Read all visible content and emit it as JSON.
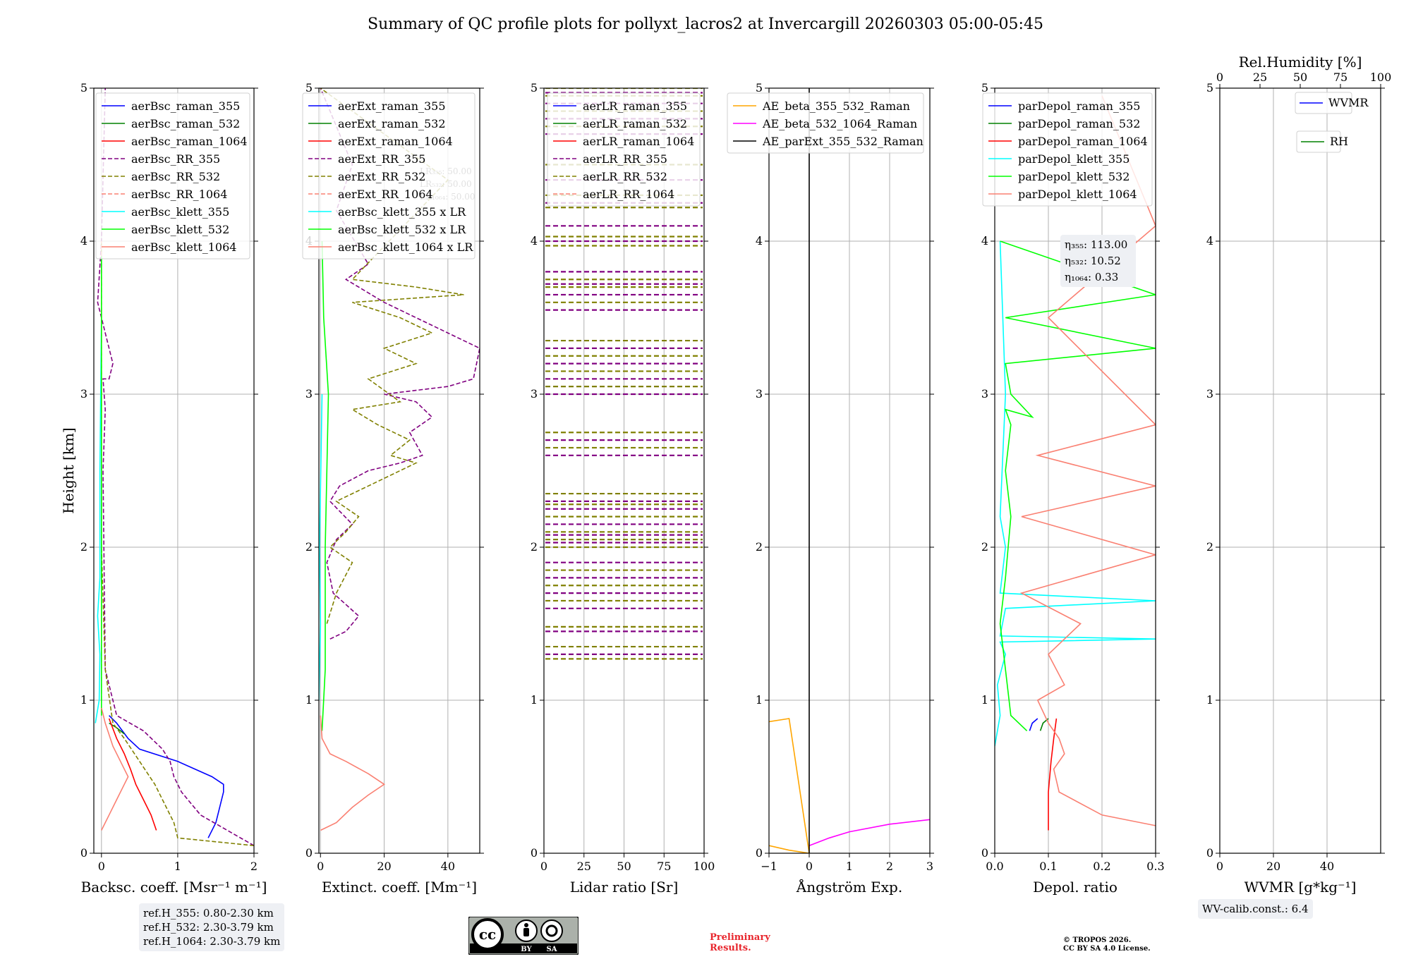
{
  "title": "Summary of QC profile plots for pollyxt_lacros2 at Invercargill 20260303 05:00-05:45",
  "reference_heights": [
    "ref.H_355: 0.80-2.30 km",
    "ref.H_532: 2.30-3.79 km",
    "ref.H_1064: 2.30-3.79 km"
  ],
  "wv_calibration": "WV-calib.const.: 6.4",
  "preliminary": [
    "Preliminary",
    "Results."
  ],
  "copyright": [
    "© TROPOS 2026.",
    "CC BY SA 4.0 License."
  ],
  "license_badge": {
    "left": "BY",
    "right": "SA"
  },
  "colors": {
    "blue": "#0000ff",
    "green": "#008000",
    "red": "#ff0000",
    "purple": "#800080",
    "olive": "#808000",
    "salmon": "#fa8072",
    "cyan": "#00ffff",
    "lime": "#00ff00",
    "orange": "#ffa500",
    "magenta": "#ff00ff",
    "black": "#000000"
  },
  "chart_data": [
    {
      "id": "backscatter",
      "type": "line",
      "xlabel": "Backsc. coeff. [Msr⁻¹ m⁻¹]",
      "ylabel": "Height [km]",
      "xlim": [
        -0.1,
        2
      ],
      "ylim": [
        0,
        5
      ],
      "xticks": [
        0,
        1,
        2
      ],
      "yticks": [
        0,
        1,
        2,
        3,
        4,
        5
      ],
      "series": [
        {
          "name": "aerBsc_raman_355",
          "color": "#0000ff",
          "dash": false,
          "x": [
            1.4,
            1.5,
            1.6,
            1.6,
            1.45,
            1.0,
            0.5,
            0.35,
            0.2,
            0.1
          ],
          "y": [
            0.1,
            0.2,
            0.4,
            0.45,
            0.5,
            0.6,
            0.68,
            0.75,
            0.85,
            0.9
          ]
        },
        {
          "name": "aerBsc_raman_532",
          "color": "#008000",
          "dash": false,
          "x": [
            0.1,
            0.2,
            0.3
          ],
          "y": [
            0.85,
            0.82,
            0.78
          ]
        },
        {
          "name": "aerBsc_raman_1064",
          "color": "#ff0000",
          "dash": false,
          "x": [
            0.72,
            0.65,
            0.55,
            0.45,
            0.38,
            0.3,
            0.2,
            0.1
          ],
          "y": [
            0.15,
            0.25,
            0.35,
            0.45,
            0.55,
            0.65,
            0.75,
            0.88
          ]
        },
        {
          "name": "aerBsc_RR_355",
          "color": "#800080",
          "dash": true,
          "x": [
            2.0,
            1.3,
            1.05,
            0.95,
            0.9,
            0.8,
            0.55,
            0.2,
            0.05,
            0.02,
            0.05,
            0.02,
            0.1,
            0.15,
            0.05,
            -0.05,
            0.0,
            0.05
          ],
          "y": [
            0.05,
            0.25,
            0.4,
            0.5,
            0.6,
            0.68,
            0.8,
            0.9,
            1.2,
            2.5,
            2.9,
            3.1,
            3.1,
            3.2,
            3.4,
            3.6,
            4.0,
            5.0
          ]
        },
        {
          "name": "aerBsc_RR_532",
          "color": "#808000",
          "dash": true,
          "x": [
            2.0,
            1.0,
            0.95,
            0.85,
            0.7,
            0.5,
            0.3,
            0.15,
            0.05,
            0.0,
            0.0
          ],
          "y": [
            0.05,
            0.1,
            0.2,
            0.3,
            0.45,
            0.6,
            0.75,
            0.85,
            1.2,
            2.0,
            4.0
          ]
        },
        {
          "name": "aerBsc_RR_1064",
          "color": "#fa8072",
          "dash": true,
          "x": [
            0.0,
            0.0
          ],
          "y": [
            1.0,
            4.0
          ]
        },
        {
          "name": "aerBsc_klett_355",
          "color": "#00ffff",
          "dash": false,
          "x": [
            -0.08,
            -0.03,
            -0.02,
            -0.05,
            -0.02,
            -0.02,
            0.0
          ],
          "y": [
            0.85,
            1.0,
            1.3,
            1.55,
            1.8,
            2.5,
            3.5
          ]
        },
        {
          "name": "aerBsc_klett_532",
          "color": "#00ff00",
          "dash": false,
          "x": [
            0.0,
            0.0,
            0.0
          ],
          "y": [
            0.9,
            2.0,
            3.9
          ]
        },
        {
          "name": "aerBsc_klett_1064",
          "color": "#fa8072",
          "dash": false,
          "x": [
            0.0,
            0.1,
            0.2,
            0.3,
            0.35,
            0.3,
            0.15,
            0.05,
            0.0
          ],
          "y": [
            0.15,
            0.25,
            0.35,
            0.45,
            0.5,
            0.55,
            0.7,
            0.85,
            0.95
          ]
        }
      ]
    },
    {
      "id": "extinction",
      "type": "line",
      "xlabel": "Extinct. coeff. [Mm⁻¹]",
      "xlim": [
        -0.5,
        50
      ],
      "ylim": [
        0,
        5
      ],
      "xticks": [
        0,
        20,
        40
      ],
      "yticks": [
        0,
        1,
        2,
        3,
        4,
        5
      ],
      "overlay_text": [
        "LR₃₅₅: 50.00",
        "LR₅₃₂: 50.00",
        "LR₁₀₆₄: 50.00"
      ],
      "series": [
        {
          "name": "aerExt_raman_355",
          "color": "#0000ff",
          "dash": false,
          "x": [],
          "y": []
        },
        {
          "name": "aerExt_raman_532",
          "color": "#008000",
          "dash": false,
          "x": [],
          "y": []
        },
        {
          "name": "aerExt_raman_1064",
          "color": "#ff0000",
          "dash": false,
          "x": [],
          "y": []
        },
        {
          "name": "aerExt_RR_355",
          "color": "#800080",
          "dash": true,
          "x": [
            3,
            8,
            12,
            4,
            2,
            5,
            10,
            3,
            6,
            15,
            25,
            32,
            28,
            35,
            30,
            20,
            40,
            48,
            50,
            30,
            20,
            8,
            15,
            5,
            10,
            0
          ],
          "y": [
            1.4,
            1.45,
            1.55,
            1.7,
            1.9,
            2.05,
            2.15,
            2.3,
            2.4,
            2.5,
            2.55,
            2.6,
            2.75,
            2.85,
            2.95,
            3.0,
            3.05,
            3.1,
            3.3,
            3.5,
            3.6,
            3.75,
            3.85,
            4.2,
            4.5,
            5.0
          ]
        },
        {
          "name": "aerExt_RR_532",
          "color": "#808000",
          "dash": true,
          "x": [
            2,
            5,
            10,
            3,
            8,
            12,
            5,
            15,
            25,
            30,
            22,
            28,
            18,
            10,
            25,
            15,
            30,
            20,
            35,
            25,
            10,
            45,
            30,
            10,
            40,
            0
          ],
          "y": [
            1.5,
            1.7,
            1.9,
            2.0,
            2.1,
            2.2,
            2.3,
            2.4,
            2.5,
            2.55,
            2.6,
            2.7,
            2.8,
            2.9,
            2.95,
            3.1,
            3.2,
            3.3,
            3.4,
            3.5,
            3.6,
            3.65,
            3.7,
            3.75,
            4.4,
            5.0
          ]
        },
        {
          "name": "aerExt_RR_1064",
          "color": "#fa8072",
          "dash": true,
          "x": [],
          "y": []
        },
        {
          "name": "aerBsc_klett_355 x LR",
          "color": "#00ffff",
          "dash": false,
          "x": [
            -0.5,
            0.0,
            -0.3,
            0.5
          ],
          "y": [
            1.0,
            1.5,
            2.0,
            3.0
          ]
        },
        {
          "name": "aerBsc_klett_532 x LR",
          "color": "#00ff00",
          "dash": false,
          "x": [
            0.5,
            1.5,
            1.5,
            2.0,
            2.5,
            1.0,
            0.5
          ],
          "y": [
            0.8,
            1.2,
            2.0,
            2.5,
            3.0,
            3.5,
            4.0
          ]
        },
        {
          "name": "aerBsc_klett_1064 x LR",
          "color": "#fa8072",
          "dash": false,
          "x": [
            0,
            5,
            10,
            15,
            20,
            15,
            8,
            3,
            0.5,
            0
          ],
          "y": [
            0.15,
            0.2,
            0.3,
            0.38,
            0.45,
            0.52,
            0.6,
            0.65,
            0.75,
            0.9
          ]
        }
      ]
    },
    {
      "id": "lidar_ratio",
      "type": "line",
      "xlabel": "Lidar ratio [Sr]",
      "xlim": [
        0,
        100
      ],
      "ylim": [
        0,
        5
      ],
      "xticks": [
        0,
        25,
        50,
        75,
        100
      ],
      "yticks": [
        0,
        1,
        2,
        3,
        4,
        5
      ],
      "series": [
        {
          "name": "aerLR_raman_355",
          "color": "#0000ff",
          "dash": false,
          "x": [],
          "y": []
        },
        {
          "name": "aerLR_raman_532",
          "color": "#008000",
          "dash": false,
          "x": [],
          "y": []
        },
        {
          "name": "aerLR_raman_1064",
          "color": "#ff0000",
          "dash": false,
          "x": [],
          "y": []
        },
        {
          "name": "aerLR_RR_355",
          "color": "#800080",
          "dash": true,
          "x": [],
          "y": []
        },
        {
          "name": "aerLR_RR_532",
          "color": "#808000",
          "dash": true,
          "x": [],
          "y": []
        },
        {
          "name": "aerLR_RR_1064",
          "color": "#fa8072",
          "dash": true,
          "x": [],
          "y": []
        }
      ],
      "hatched_levels_km": [
        1.27,
        1.3,
        1.35,
        1.45,
        1.48,
        1.6,
        1.65,
        1.7,
        1.75,
        1.8,
        1.85,
        1.9,
        2.0,
        2.03,
        2.05,
        2.08,
        2.1,
        2.15,
        2.2,
        2.25,
        2.28,
        2.3,
        2.35,
        2.6,
        2.65,
        2.7,
        2.75,
        3.0,
        3.05,
        3.1,
        3.15,
        3.2,
        3.25,
        3.3,
        3.35,
        3.55,
        3.6,
        3.65,
        3.7,
        3.72,
        3.75,
        3.8,
        3.97,
        4.0,
        4.03,
        4.1,
        4.22,
        4.25,
        4.3,
        4.4,
        4.5,
        4.7,
        4.75,
        4.8,
        4.85,
        4.9,
        4.95,
        4.97,
        5.0
      ]
    },
    {
      "id": "angstrom",
      "type": "line",
      "xlabel": "Ångström Exp.",
      "xlim": [
        -1,
        3
      ],
      "ylim": [
        0,
        5
      ],
      "xticks": [
        -1,
        0,
        1,
        2,
        3
      ],
      "yticks": [
        0,
        1,
        2,
        3,
        4,
        5
      ],
      "series": [
        {
          "name": "AE_beta_355_532_Raman",
          "color": "#ffa500",
          "dash": false,
          "x": [
            -1.0,
            -0.5,
            0.0,
            -0.5,
            -1.0
          ],
          "y": [
            0.05,
            0.02,
            0.0,
            0.88,
            0.86
          ]
        },
        {
          "name": "AE_beta_532_1064_Raman",
          "color": "#ff00ff",
          "dash": false,
          "x": [
            0.0,
            0.5,
            1.0,
            2.0,
            3.0
          ],
          "y": [
            0.05,
            0.1,
            0.14,
            0.19,
            0.22
          ]
        },
        {
          "name": "AE_parExt_355_532_Raman",
          "color": "#000000",
          "dash": false,
          "x": [
            0.0,
            0.0
          ],
          "y": [
            0.0,
            5.0
          ]
        }
      ]
    },
    {
      "id": "depol",
      "type": "line",
      "xlabel": "Depol. ratio",
      "xlim": [
        0,
        0.3
      ],
      "ylim": [
        0,
        5
      ],
      "xticks": [
        0.0,
        0.1,
        0.2,
        0.3
      ],
      "xtick_labels": [
        "0.0",
        "0.1",
        "0.2",
        "0.3"
      ],
      "yticks": [
        0,
        1,
        2,
        3,
        4,
        5
      ],
      "eta": [
        "η₃₅₅: 113.00",
        "η₅₃₂: 10.52",
        "η₁₀₆₄: 0.33"
      ],
      "series": [
        {
          "name": "parDepol_raman_355",
          "color": "#0000ff",
          "dash": false,
          "x": [
            0.065,
            0.07,
            0.08
          ],
          "y": [
            0.8,
            0.85,
            0.88
          ]
        },
        {
          "name": "parDepol_raman_532",
          "color": "#008000",
          "dash": false,
          "x": [
            0.085,
            0.09,
            0.1
          ],
          "y": [
            0.8,
            0.85,
            0.88
          ]
        },
        {
          "name": "parDepol_raman_1064",
          "color": "#ff0000",
          "dash": false,
          "x": [
            0.1,
            0.1,
            0.105,
            0.11,
            0.115
          ],
          "y": [
            0.15,
            0.4,
            0.6,
            0.75,
            0.88
          ]
        },
        {
          "name": "parDepol_klett_355",
          "color": "#00ffff",
          "dash": false,
          "x": [
            0.0,
            0.01,
            0.005,
            0.02,
            0.01,
            0.3,
            0.01,
            0.02,
            0.3,
            0.01,
            0.02,
            0.01,
            0.02,
            0.015,
            0.01
          ],
          "y": [
            0.7,
            0.9,
            1.1,
            1.3,
            1.38,
            1.4,
            1.42,
            1.6,
            1.65,
            1.7,
            2.0,
            2.2,
            3.0,
            3.5,
            4.0
          ]
        },
        {
          "name": "parDepol_klett_532",
          "color": "#00ff00",
          "dash": false,
          "x": [
            0.06,
            0.03,
            0.02,
            0.01,
            0.02,
            0.03,
            0.02,
            0.03,
            0.02,
            0.07,
            0.03,
            0.02,
            0.3,
            0.02,
            0.3,
            0.01
          ],
          "y": [
            0.8,
            0.9,
            1.2,
            1.5,
            1.8,
            2.2,
            2.5,
            2.8,
            2.9,
            2.85,
            3.0,
            3.2,
            3.3,
            3.5,
            3.65,
            4.0
          ]
        },
        {
          "name": "parDepol_klett_1064",
          "color": "#fa8072",
          "dash": false,
          "x": [
            0.3,
            0.2,
            0.12,
            0.11,
            0.13,
            0.12,
            0.1,
            0.08,
            0.13,
            0.1,
            0.16,
            0.05,
            0.3,
            0.05,
            0.3,
            0.08,
            0.3,
            0.1,
            0.3,
            0.2
          ],
          "y": [
            0.18,
            0.25,
            0.4,
            0.55,
            0.65,
            0.75,
            0.85,
            1.0,
            1.1,
            1.3,
            1.5,
            1.7,
            1.95,
            2.2,
            2.4,
            2.6,
            2.8,
            3.5,
            4.1,
            4.95
          ]
        }
      ]
    },
    {
      "id": "wvmr",
      "type": "line",
      "xlabel": "WVMR [g*kg⁻¹]",
      "top_xlabel": "Rel.Humidity [%]",
      "xlim": [
        0,
        60
      ],
      "ylim": [
        0,
        5
      ],
      "top_xlim": [
        0,
        100
      ],
      "xticks": [
        0,
        20,
        40
      ],
      "top_xticks": [
        0,
        25,
        50,
        75,
        100
      ],
      "yticks": [
        0,
        1,
        2,
        3,
        4,
        5
      ],
      "series": [
        {
          "name": "WVMR",
          "color": "#0000ff",
          "dash": false,
          "x": [],
          "y": []
        },
        {
          "name": "RH",
          "color": "#008000",
          "dash": false,
          "x": [],
          "y": []
        }
      ]
    }
  ]
}
